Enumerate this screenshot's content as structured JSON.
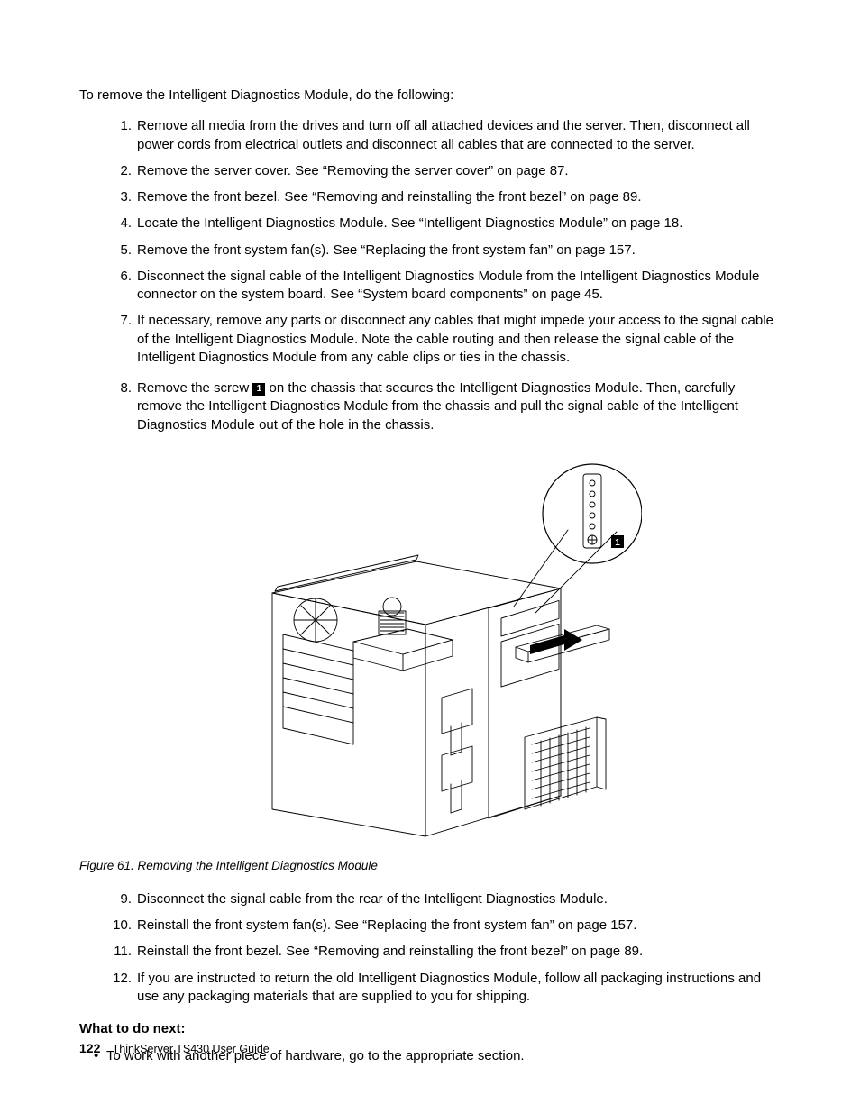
{
  "intro": "To remove the Intelligent Diagnostics Module, do the following:",
  "steps_top": [
    {
      "n": "1.",
      "text": "Remove all media from the drives and turn off all attached devices and the server. Then, disconnect all power cords from electrical outlets and disconnect all cables that are connected to the server."
    },
    {
      "n": "2.",
      "text": "Remove the server cover. See “Removing the server cover” on page 87."
    },
    {
      "n": "3.",
      "text": "Remove the front bezel. See “Removing and reinstalling the front bezel” on page 89."
    },
    {
      "n": "4.",
      "text": "Locate the Intelligent Diagnostics Module. See “Intelligent Diagnostics Module” on page 18."
    },
    {
      "n": "5.",
      "text": "Remove the front system fan(s). See “Replacing the front system fan” on page 157."
    },
    {
      "n": "6.",
      "text": "Disconnect the signal cable of the Intelligent Diagnostics Module from the Intelligent Diagnostics Module connector on the system board. See “System board components” on page 45."
    },
    {
      "n": "7.",
      "text": "If necessary, remove any parts or disconnect any cables that might impede your access to the signal cable of the Intelligent Diagnostics Module. Note the cable routing and then release the signal cable of the Intelligent Diagnostics Module from any cable clips or ties in the chassis."
    }
  ],
  "step8_n": "8.",
  "step8_pre": "Remove the screw ",
  "callout_label": "1",
  "step8_post": " on the chassis that secures the Intelligent Diagnostics Module. Then, carefully remove the Intelligent Diagnostics Module from the chassis and pull the signal cable of the Intelligent Diagnostics Module out of the hole in the chassis.",
  "figure_caption": "Figure 61. Removing the Intelligent Diagnostics Module",
  "figure_callout_label": "1",
  "steps_bottom": [
    {
      "n": "9.",
      "text": "Disconnect the signal cable from the rear of the Intelligent Diagnostics Module."
    },
    {
      "n": "10.",
      "text": "Reinstall the front system fan(s). See “Replacing the front system fan” on page 157."
    },
    {
      "n": "11.",
      "text": "Reinstall the front bezel. See “Removing and reinstalling the front bezel” on page 89."
    },
    {
      "n": "12.",
      "text": "If you are instructed to return the old Intelligent Diagnostics Module, follow all packaging instructions and use any packaging materials that are supplied to you for shipping."
    }
  ],
  "what_next_label": "What to do next:",
  "what_next_bullet": "To work with another piece of hardware, go to the appropriate section.",
  "footer_page": "122",
  "footer_text": "ThinkServer TS430 User Guide",
  "svg": {
    "stroke": "#000000",
    "stroke_thin": "0.9",
    "stroke_med": "1.2",
    "callout_bg": "#000000",
    "callout_fg": "#ffffff"
  }
}
